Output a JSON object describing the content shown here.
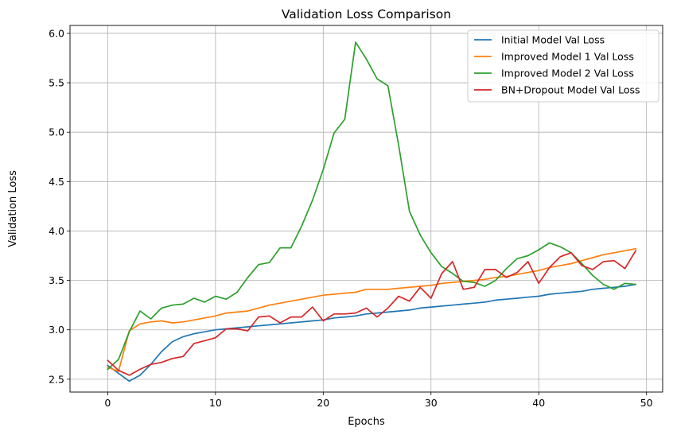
{
  "chart_data": {
    "type": "line",
    "title": "Validation Loss Comparison",
    "xlabel": "Epochs",
    "ylabel": "Validation Loss",
    "xlim": [
      -3.5,
      51.5
    ],
    "ylim": [
      2.37,
      6.08
    ],
    "xticks": [
      0,
      10,
      20,
      30,
      40,
      50
    ],
    "yticks": [
      2.5,
      3.0,
      3.5,
      4.0,
      4.5,
      5.0,
      5.5,
      6.0
    ],
    "xtick_labels": [
      "0",
      "10",
      "20",
      "30",
      "40",
      "50"
    ],
    "ytick_labels": [
      "2.5",
      "3.0",
      "3.5",
      "4.0",
      "4.5",
      "5.0",
      "5.5",
      "6.0"
    ],
    "grid": true,
    "legend_position": "top-right",
    "x": [
      0,
      1,
      2,
      3,
      4,
      5,
      6,
      7,
      8,
      9,
      10,
      11,
      12,
      13,
      14,
      15,
      16,
      17,
      18,
      19,
      20,
      21,
      22,
      23,
      24,
      25,
      26,
      27,
      28,
      29,
      30,
      31,
      32,
      33,
      34,
      35,
      36,
      37,
      38,
      39,
      40,
      41,
      42,
      43,
      44,
      45,
      46,
      47,
      48,
      49
    ],
    "series": [
      {
        "name": "Initial Model Val Loss",
        "color": "#1f77b4",
        "values": [
          2.64,
          2.56,
          2.48,
          2.54,
          2.65,
          2.78,
          2.88,
          2.93,
          2.96,
          2.98,
          3.0,
          3.01,
          3.02,
          3.03,
          3.04,
          3.05,
          3.06,
          3.07,
          3.08,
          3.09,
          3.1,
          3.12,
          3.13,
          3.14,
          3.16,
          3.17,
          3.18,
          3.19,
          3.2,
          3.22,
          3.23,
          3.24,
          3.25,
          3.26,
          3.27,
          3.28,
          3.3,
          3.31,
          3.32,
          3.33,
          3.34,
          3.36,
          3.37,
          3.38,
          3.39,
          3.41,
          3.42,
          3.43,
          3.44,
          3.46
        ]
      },
      {
        "name": "Improved Model 1 Val Loss",
        "color": "#ff7f0e",
        "values": [
          2.62,
          2.58,
          2.99,
          3.06,
          3.08,
          3.09,
          3.07,
          3.08,
          3.1,
          3.12,
          3.14,
          3.17,
          3.18,
          3.19,
          3.22,
          3.25,
          3.27,
          3.29,
          3.31,
          3.33,
          3.35,
          3.36,
          3.37,
          3.38,
          3.41,
          3.41,
          3.41,
          3.42,
          3.43,
          3.44,
          3.45,
          3.47,
          3.48,
          3.49,
          3.5,
          3.51,
          3.53,
          3.54,
          3.56,
          3.58,
          3.6,
          3.63,
          3.65,
          3.67,
          3.7,
          3.73,
          3.76,
          3.78,
          3.8,
          3.82
        ]
      },
      {
        "name": "Improved Model 2 Val Loss",
        "color": "#2ca02c",
        "values": [
          2.6,
          2.7,
          2.98,
          3.19,
          3.11,
          3.22,
          3.25,
          3.26,
          3.32,
          3.28,
          3.34,
          3.31,
          3.38,
          3.53,
          3.66,
          3.68,
          3.83,
          3.83,
          4.05,
          4.31,
          4.62,
          4.99,
          5.13,
          5.91,
          5.74,
          5.54,
          5.47,
          4.87,
          4.2,
          3.96,
          3.78,
          3.64,
          3.57,
          3.49,
          3.48,
          3.44,
          3.5,
          3.62,
          3.72,
          3.75,
          3.81,
          3.88,
          3.84,
          3.78,
          3.67,
          3.55,
          3.46,
          3.41,
          3.47,
          3.46
        ]
      },
      {
        "name": "BN+Dropout Model Val Loss",
        "color": "#d62728",
        "values": [
          2.69,
          2.59,
          2.54,
          2.6,
          2.65,
          2.67,
          2.71,
          2.73,
          2.86,
          2.89,
          2.92,
          3.01,
          3.01,
          2.99,
          3.13,
          3.14,
          3.07,
          3.13,
          3.13,
          3.23,
          3.09,
          3.16,
          3.16,
          3.17,
          3.22,
          3.13,
          3.22,
          3.34,
          3.29,
          3.43,
          3.32,
          3.57,
          3.69,
          3.41,
          3.43,
          3.61,
          3.61,
          3.53,
          3.58,
          3.69,
          3.47,
          3.63,
          3.74,
          3.78,
          3.65,
          3.61,
          3.69,
          3.7,
          3.62,
          3.8
        ]
      }
    ]
  }
}
